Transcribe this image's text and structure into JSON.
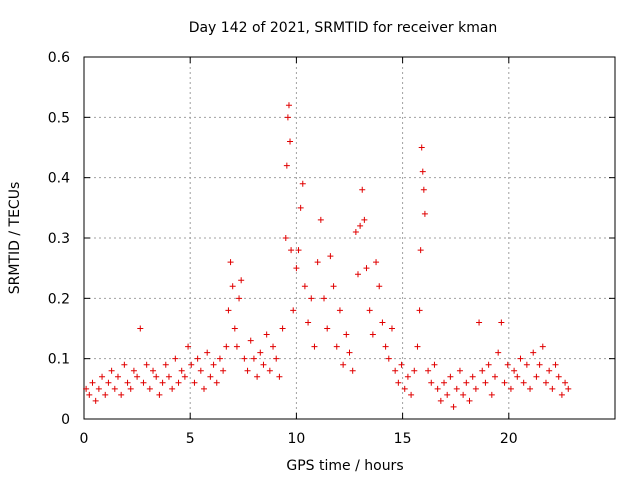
{
  "chart_data": {
    "type": "scatter",
    "title": "Day 142 of 2021, SRMTID for receiver kman",
    "xlabel": "GPS time / hours",
    "ylabel": "SRMTID / TECUs",
    "xlim": [
      0,
      25
    ],
    "ylim": [
      0,
      0.6
    ],
    "xticks": [
      0,
      5,
      10,
      15,
      20
    ],
    "xtick_labels": [
      "0",
      "5",
      "10",
      "15",
      "20"
    ],
    "yticks": [
      0,
      0.1,
      0.2,
      0.3,
      0.4,
      0.5,
      0.6
    ],
    "ytick_labels": [
      "0",
      "0.1",
      "0.2",
      "0.3",
      "0.4",
      "0.5",
      "0.6"
    ],
    "grid": true,
    "marker": "+",
    "series": [
      {
        "name": "SRMTID",
        "color": "#e00000",
        "points": [
          [
            0.1,
            0.05
          ],
          [
            0.25,
            0.04
          ],
          [
            0.4,
            0.06
          ],
          [
            0.55,
            0.03
          ],
          [
            0.7,
            0.05
          ],
          [
            0.85,
            0.07
          ],
          [
            1.0,
            0.04
          ],
          [
            1.15,
            0.06
          ],
          [
            1.3,
            0.08
          ],
          [
            1.45,
            0.05
          ],
          [
            1.6,
            0.07
          ],
          [
            1.75,
            0.04
          ],
          [
            1.9,
            0.09
          ],
          [
            2.05,
            0.06
          ],
          [
            2.2,
            0.05
          ],
          [
            2.35,
            0.08
          ],
          [
            2.5,
            0.07
          ],
          [
            2.65,
            0.15
          ],
          [
            2.8,
            0.06
          ],
          [
            2.95,
            0.09
          ],
          [
            3.1,
            0.05
          ],
          [
            3.25,
            0.08
          ],
          [
            3.4,
            0.07
          ],
          [
            3.55,
            0.04
          ],
          [
            3.7,
            0.06
          ],
          [
            3.85,
            0.09
          ],
          [
            4.0,
            0.07
          ],
          [
            4.15,
            0.05
          ],
          [
            4.3,
            0.1
          ],
          [
            4.45,
            0.06
          ],
          [
            4.6,
            0.08
          ],
          [
            4.75,
            0.07
          ],
          [
            4.9,
            0.12
          ],
          [
            5.05,
            0.09
          ],
          [
            5.2,
            0.06
          ],
          [
            5.35,
            0.1
          ],
          [
            5.5,
            0.08
          ],
          [
            5.65,
            0.05
          ],
          [
            5.8,
            0.11
          ],
          [
            5.95,
            0.07
          ],
          [
            6.1,
            0.09
          ],
          [
            6.25,
            0.06
          ],
          [
            6.4,
            0.1
          ],
          [
            6.55,
            0.08
          ],
          [
            6.7,
            0.12
          ],
          [
            6.8,
            0.18
          ],
          [
            6.9,
            0.26
          ],
          [
            7.0,
            0.22
          ],
          [
            7.1,
            0.15
          ],
          [
            7.2,
            0.12
          ],
          [
            7.3,
            0.2
          ],
          [
            7.4,
            0.23
          ],
          [
            7.55,
            0.1
          ],
          [
            7.7,
            0.08
          ],
          [
            7.85,
            0.13
          ],
          [
            8.0,
            0.1
          ],
          [
            8.15,
            0.07
          ],
          [
            8.3,
            0.11
          ],
          [
            8.45,
            0.09
          ],
          [
            8.6,
            0.14
          ],
          [
            8.75,
            0.08
          ],
          [
            8.9,
            0.12
          ],
          [
            9.05,
            0.1
          ],
          [
            9.2,
            0.07
          ],
          [
            9.35,
            0.15
          ],
          [
            9.5,
            0.3
          ],
          [
            9.55,
            0.42
          ],
          [
            9.6,
            0.5
          ],
          [
            9.65,
            0.52
          ],
          [
            9.7,
            0.46
          ],
          [
            9.75,
            0.28
          ],
          [
            9.85,
            0.18
          ],
          [
            10.0,
            0.25
          ],
          [
            10.1,
            0.28
          ],
          [
            10.2,
            0.35
          ],
          [
            10.3,
            0.39
          ],
          [
            10.4,
            0.22
          ],
          [
            10.55,
            0.16
          ],
          [
            10.7,
            0.2
          ],
          [
            10.85,
            0.12
          ],
          [
            11.0,
            0.26
          ],
          [
            11.15,
            0.33
          ],
          [
            11.3,
            0.2
          ],
          [
            11.45,
            0.15
          ],
          [
            11.6,
            0.27
          ],
          [
            11.75,
            0.22
          ],
          [
            11.9,
            0.12
          ],
          [
            12.05,
            0.18
          ],
          [
            12.2,
            0.09
          ],
          [
            12.35,
            0.14
          ],
          [
            12.5,
            0.11
          ],
          [
            12.65,
            0.08
          ],
          [
            12.8,
            0.31
          ],
          [
            12.9,
            0.24
          ],
          [
            13.0,
            0.32
          ],
          [
            13.1,
            0.38
          ],
          [
            13.2,
            0.33
          ],
          [
            13.3,
            0.25
          ],
          [
            13.45,
            0.18
          ],
          [
            13.6,
            0.14
          ],
          [
            13.75,
            0.26
          ],
          [
            13.9,
            0.22
          ],
          [
            14.05,
            0.16
          ],
          [
            14.2,
            0.12
          ],
          [
            14.35,
            0.1
          ],
          [
            14.5,
            0.15
          ],
          [
            14.65,
            0.08
          ],
          [
            14.8,
            0.06
          ],
          [
            14.95,
            0.09
          ],
          [
            15.1,
            0.05
          ],
          [
            15.25,
            0.07
          ],
          [
            15.4,
            0.04
          ],
          [
            15.55,
            0.08
          ],
          [
            15.7,
            0.12
          ],
          [
            15.8,
            0.18
          ],
          [
            15.85,
            0.28
          ],
          [
            15.9,
            0.45
          ],
          [
            15.95,
            0.41
          ],
          [
            16.0,
            0.38
          ],
          [
            16.05,
            0.34
          ],
          [
            16.2,
            0.08
          ],
          [
            16.35,
            0.06
          ],
          [
            16.5,
            0.09
          ],
          [
            16.65,
            0.05
          ],
          [
            16.8,
            0.03
          ],
          [
            16.95,
            0.06
          ],
          [
            17.1,
            0.04
          ],
          [
            17.25,
            0.07
          ],
          [
            17.4,
            0.02
          ],
          [
            17.55,
            0.05
          ],
          [
            17.7,
            0.08
          ],
          [
            17.85,
            0.04
          ],
          [
            18.0,
            0.06
          ],
          [
            18.15,
            0.03
          ],
          [
            18.3,
            0.07
          ],
          [
            18.45,
            0.05
          ],
          [
            18.6,
            0.16
          ],
          [
            18.75,
            0.08
          ],
          [
            18.9,
            0.06
          ],
          [
            19.05,
            0.09
          ],
          [
            19.2,
            0.04
          ],
          [
            19.35,
            0.07
          ],
          [
            19.5,
            0.11
          ],
          [
            19.65,
            0.16
          ],
          [
            19.8,
            0.06
          ],
          [
            19.95,
            0.09
          ],
          [
            20.1,
            0.05
          ],
          [
            20.25,
            0.08
          ],
          [
            20.4,
            0.07
          ],
          [
            20.55,
            0.1
          ],
          [
            20.7,
            0.06
          ],
          [
            20.85,
            0.09
          ],
          [
            21.0,
            0.05
          ],
          [
            21.15,
            0.11
          ],
          [
            21.3,
            0.07
          ],
          [
            21.45,
            0.09
          ],
          [
            21.6,
            0.12
          ],
          [
            21.75,
            0.06
          ],
          [
            21.9,
            0.08
          ],
          [
            22.05,
            0.05
          ],
          [
            22.2,
            0.09
          ],
          [
            22.35,
            0.07
          ],
          [
            22.5,
            0.04
          ],
          [
            22.65,
            0.06
          ],
          [
            22.8,
            0.05
          ]
        ]
      }
    ]
  }
}
